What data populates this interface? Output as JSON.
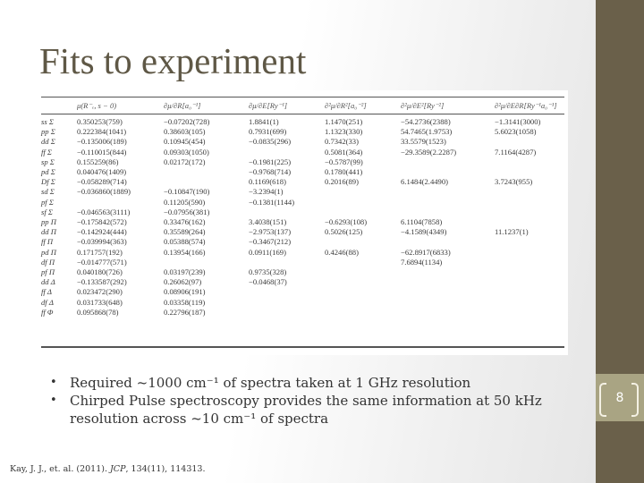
{
  "slide": {
    "title": "Fits to experiment",
    "page_number": "8",
    "colors": {
      "sidebar": "#6a604a",
      "page_band": "#a9a483",
      "title_text": "#5f5846",
      "body_text": "#333333"
    }
  },
  "table": {
    "headers": [
      "",
      "μ(R⁻ₑ, s − 0)",
      "∂μ/∂R[a₀⁻¹]",
      "∂μ/∂E[Ry⁻¹]",
      "∂²μ/∂R²[a₀⁻²]",
      "∂²μ/∂E²[Ry⁻²]",
      "∂²μ/∂E∂R[Ry⁻¹a₀⁻¹]"
    ],
    "rows": [
      [
        "ss Σ",
        "0.350253(759)",
        "−0.07202(728)",
        "1.8841(1)",
        "1.1470(251)",
        "−54.2736(2388)",
        "−1.3141(3000)"
      ],
      [
        "pp Σ",
        "0.222384(1041)",
        "0.38603(105)",
        "0.7931(699)",
        "1.1323(330)",
        "54.7465(1.9753)",
        "5.6023(1058)"
      ],
      [
        "dd Σ",
        "−0.135006(189)",
        "0.10945(454)",
        "−0.0835(296)",
        "0.7342(33)",
        "33.5579(1523)",
        ""
      ],
      [
        "ff Σ",
        "−0.110015(844)",
        "0.09303(1050)",
        "",
        "0.5081(364)",
        "−29.3589(2.2287)",
        "7.1164(4287)"
      ],
      [
        "sp Σ",
        "0.155259(86)",
        "0.02172(172)",
        "−0.1981(225)",
        "−0.5787(99)",
        "",
        ""
      ],
      [
        "pd Σ",
        "0.040476(1409)",
        "",
        "−0.9768(714)",
        "0.1780(441)",
        "",
        ""
      ],
      [
        "Df Σ",
        "−0.058289(714)",
        "",
        "0.1169(618)",
        "0.2016(89)",
        "6.1484(2.4490)",
        "3.7243(955)"
      ],
      [
        "sd Σ",
        "−0.036860(1889)",
        "−0.10847(190)",
        "−3.2394(1)",
        "",
        "",
        ""
      ],
      [
        "pf Σ",
        "",
        "0.11205(590)",
        "−0.1381(1144)",
        "",
        "",
        ""
      ],
      [
        "sf Σ",
        "−0.046563(3111)",
        "−0.07956(381)",
        "",
        "",
        "",
        ""
      ],
      [
        "pp Π",
        "−0.175842(572)",
        "0.33476(162)",
        "3.4038(151)",
        "−0.6293(108)",
        "6.1104(7858)",
        ""
      ],
      [
        "dd Π",
        "−0.142924(444)",
        "0.35589(264)",
        "−2.9753(137)",
        "0.5026(125)",
        "−4.1589(4349)",
        "11.1237(1)"
      ],
      [
        "ff Π",
        "−0.039994(363)",
        "0.05388(574)",
        "−0.3467(212)",
        "",
        "",
        ""
      ],
      [
        "pd Π",
        "0.171757(192)",
        "0.13954(166)",
        "0.0911(169)",
        "0.4246(88)",
        "−62.8917(6833)",
        ""
      ],
      [
        "df Π",
        "−0.014777(571)",
        "",
        "",
        "",
        "7.6894(1134)",
        ""
      ],
      [
        "pf Π",
        "0.040180(726)",
        "0.03197(239)",
        "0.9735(328)",
        "",
        "",
        ""
      ],
      [
        "dd Δ",
        "−0.133587(292)",
        "0.26062(97)",
        "−0.0468(37)",
        "",
        "",
        ""
      ],
      [
        "ff Δ",
        "0.023472(290)",
        "0.08906(191)",
        "",
        "",
        "",
        ""
      ],
      [
        "df Δ",
        "0.031733(648)",
        "0.03358(119)",
        "",
        "",
        "",
        ""
      ],
      [
        "ff Φ",
        "0.095868(78)",
        "0.22796(187)",
        "",
        "",
        "",
        ""
      ]
    ]
  },
  "bullets": [
    "Required ~1000 cm⁻¹ of spectra taken at 1 GHz resolution",
    "Chirped Pulse spectroscopy provides the same information at 50 kHz resolution across ~10 cm⁻¹ of spectra"
  ],
  "bullet_glyph": "•",
  "citation": {
    "before": "Kay, J. J., et. al. (2011). ",
    "journal": "JCP",
    "after": ", 134(11), 114313."
  }
}
